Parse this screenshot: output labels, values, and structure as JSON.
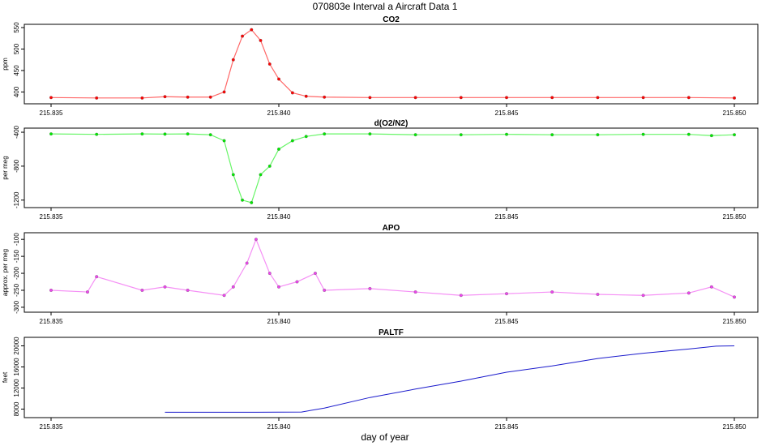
{
  "title": "070803e   Interval a Aircraft Data 1",
  "xlabel": "day of year",
  "chart_data": [
    {
      "type": "scatter",
      "title": "CO2",
      "ylabel": "ppm",
      "color": "#ff0000",
      "xlim": [
        215.835,
        215.85
      ],
      "ylim": [
        380,
        550
      ],
      "yticks": [
        400,
        450,
        500,
        550
      ],
      "xticks": [
        215.835,
        215.84,
        215.845,
        215.85
      ],
      "x": [
        215.835,
        215.836,
        215.837,
        215.8375,
        215.838,
        215.8385,
        215.8388,
        215.839,
        215.8392,
        215.8394,
        215.8396,
        215.8398,
        215.84,
        215.8403,
        215.8406,
        215.841,
        215.842,
        215.843,
        215.844,
        215.845,
        215.846,
        215.847,
        215.848,
        215.849,
        215.85
      ],
      "y": [
        387,
        386,
        386,
        389,
        388,
        388,
        400,
        475,
        530,
        545,
        520,
        465,
        430,
        398,
        390,
        388,
        387,
        387,
        387,
        387,
        387,
        387,
        387,
        387,
        386
      ]
    },
    {
      "type": "scatter",
      "title": "d(O2/N2)",
      "ylabel": "per meg",
      "color": "#00ee00",
      "xlim": [
        215.835,
        215.85
      ],
      "ylim": [
        -1250,
        -390
      ],
      "yticks": [
        -400,
        -800,
        -1200
      ],
      "xticks": [
        215.835,
        215.84,
        215.845,
        215.85
      ],
      "x": [
        215.835,
        215.836,
        215.837,
        215.8375,
        215.838,
        215.8385,
        215.8388,
        215.839,
        215.8392,
        215.8394,
        215.8396,
        215.8398,
        215.84,
        215.8403,
        215.8406,
        215.841,
        215.842,
        215.843,
        215.844,
        215.845,
        215.846,
        215.847,
        215.848,
        215.849,
        215.8495,
        215.85
      ],
      "y": [
        -420,
        -425,
        -420,
        -422,
        -420,
        -430,
        -500,
        -900,
        -1200,
        -1230,
        -900,
        -800,
        -600,
        -500,
        -450,
        -420,
        -420,
        -430,
        -430,
        -425,
        -430,
        -430,
        -425,
        -425,
        -440,
        -430
      ]
    },
    {
      "type": "scatter",
      "title": "APO",
      "ylabel": "approx. per meg",
      "color": "#ee44ee",
      "xlim": [
        215.835,
        215.85
      ],
      "ylim": [
        -305,
        -90
      ],
      "yticks": [
        -100,
        -150,
        -200,
        -250,
        -300
      ],
      "xticks": [
        215.835,
        215.84,
        215.845,
        215.85
      ],
      "x": [
        215.835,
        215.8358,
        215.836,
        215.837,
        215.8375,
        215.838,
        215.8388,
        215.839,
        215.8393,
        215.8395,
        215.8398,
        215.84,
        215.8404,
        215.8408,
        215.841,
        215.842,
        215.843,
        215.844,
        215.845,
        215.846,
        215.847,
        215.848,
        215.849,
        215.8495,
        215.85
      ],
      "y": [
        -250,
        -255,
        -210,
        -250,
        -240,
        -250,
        -265,
        -240,
        -170,
        -100,
        -200,
        -240,
        -225,
        -200,
        -250,
        -245,
        -255,
        -265,
        -260,
        -255,
        -262,
        -265,
        -258,
        -240,
        -270
      ]
    },
    {
      "type": "line",
      "title": "PALTF",
      "ylabel": "feet",
      "color": "#1a1acc",
      "xlim": [
        215.835,
        215.85
      ],
      "ylim": [
        7000,
        21000
      ],
      "yticks": [
        8000,
        12000,
        16000,
        20000
      ],
      "xticks": [
        215.835,
        215.84,
        215.845,
        215.85
      ],
      "x": [
        215.8375,
        215.8385,
        215.8395,
        215.8405,
        215.841,
        215.842,
        215.843,
        215.844,
        215.845,
        215.846,
        215.847,
        215.848,
        215.849,
        215.8496,
        215.85
      ],
      "y": [
        7400,
        7400,
        7400,
        7450,
        8200,
        10200,
        11800,
        13300,
        15000,
        16200,
        17600,
        18600,
        19400,
        19950,
        20000
      ]
    }
  ]
}
